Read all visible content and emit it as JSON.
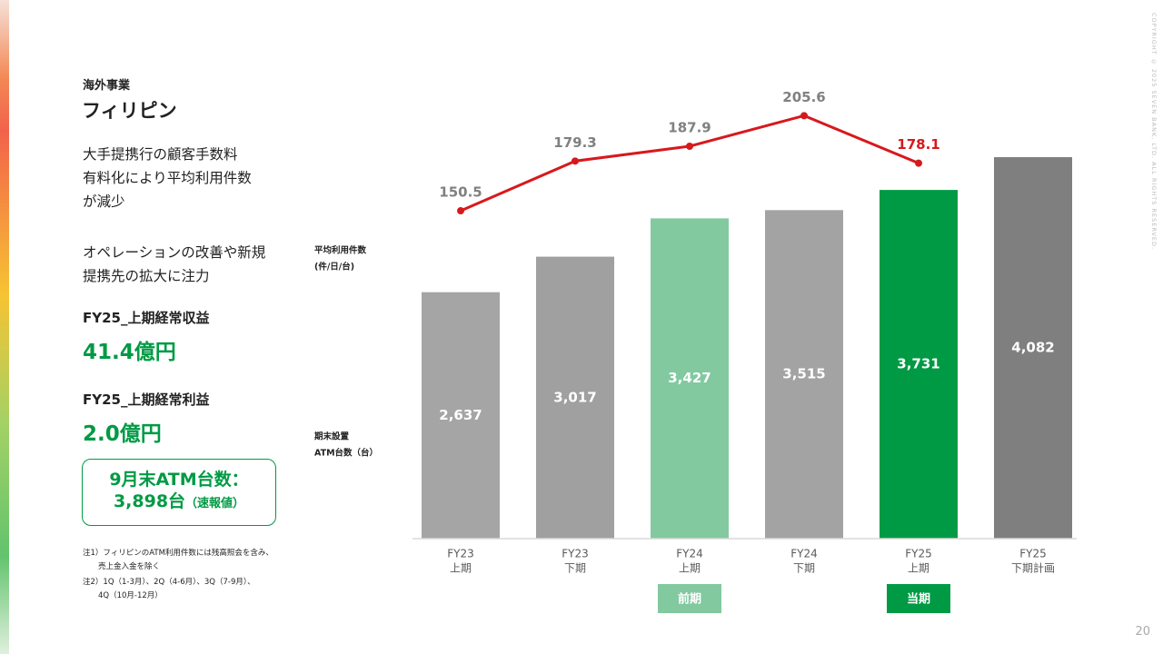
{
  "header": {
    "section": "海外事業",
    "title": "フィリピン"
  },
  "description": [
    [
      "大手提携行の顧客手数料",
      "有料化により平均利用件数",
      "が減少"
    ],
    [
      "オペレーションの改善や新規",
      "提携先の拡大に注力"
    ]
  ],
  "kpis": [
    {
      "label": "FY25_上期経常収益",
      "value": "41.4億円"
    },
    {
      "label": "FY25_上期経常利益",
      "value": "2.0億円"
    }
  ],
  "callout": {
    "line1": "9月末ATM台数：",
    "main": "3,898台",
    "note": "（速報値）"
  },
  "notes": [
    [
      "注1）フィリピンのATM利用件数には残高照会を含み、",
      "売上金入金を除く"
    ],
    [
      "注2）1Q（1-3月）、2Q（4-6月）、3Q（7-9月）、",
      "4Q（10月-12月）"
    ]
  ],
  "copyright": "COPYRIGHT © 2025 SEVEN BANK, LTD. ALL RIGHTS RESERVED.",
  "page_number": "20",
  "chart_data": {
    "type": "bar",
    "categories": [
      [
        "FY23",
        "上期"
      ],
      [
        "FY23",
        "下期"
      ],
      [
        "FY24",
        "上期"
      ],
      [
        "FY24",
        "下期"
      ],
      [
        "FY25",
        "上期"
      ],
      [
        "FY25",
        "下期計画"
      ]
    ],
    "y_label": [
      "期末設置",
      "ATM台数（台）"
    ],
    "y2_label": [
      "平均利用件数",
      "(件/日/台)"
    ],
    "ylim": [
      0,
      4500
    ],
    "y2lim": [
      100,
      220
    ],
    "series": [
      {
        "type": "bar",
        "colors": [
          "#a5a5a5",
          "#a0a0a0",
          "#82c9a0",
          "#a3a3a3",
          "#009a44",
          "#7f7f7f"
        ],
        "values": [
          2637,
          3017,
          3427,
          3515,
          3731,
          4082
        ],
        "value_labels": [
          "2,637",
          "3,017",
          "3,427",
          "3,515",
          "3,731",
          "4,082"
        ]
      },
      {
        "type": "line",
        "axis": "y2",
        "color": "#d7191c",
        "values": [
          150.5,
          179.3,
          187.9,
          205.6,
          178.1,
          null
        ],
        "label_colors": [
          "#808080",
          "#808080",
          "#808080",
          "#808080",
          "#d7191c",
          null
        ]
      }
    ],
    "period_tags": [
      {
        "label": "前期",
        "category": 2,
        "color": "#82c9a0"
      },
      {
        "label": "当期",
        "category": 4,
        "color": "#009a44"
      }
    ]
  }
}
